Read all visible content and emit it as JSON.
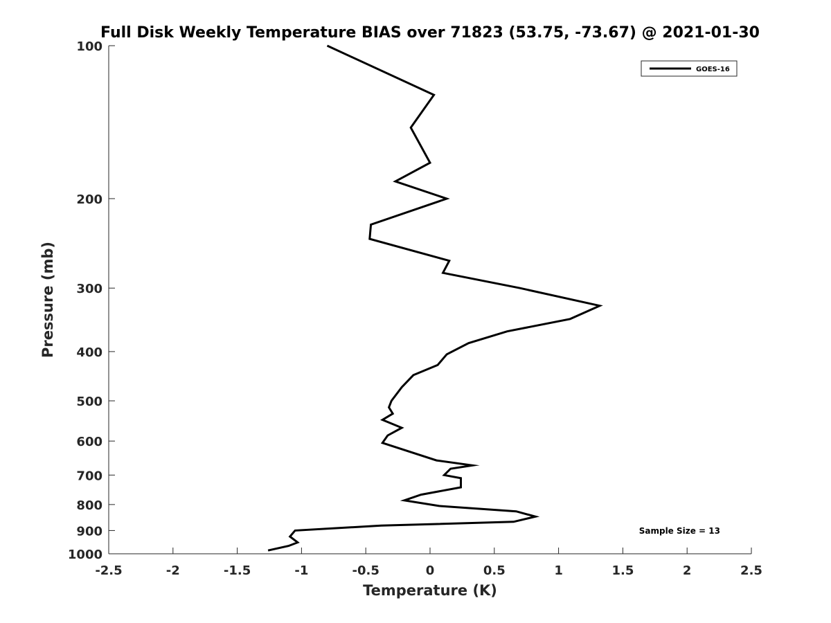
{
  "chart_data": {
    "type": "line",
    "title": "Full Disk Weekly Temperature BIAS over 71823 (53.75, -73.67) @ 2021-01-30",
    "xlabel": "Temperature (K)",
    "ylabel": "Pressure (mb)",
    "xlim": [
      -2.5,
      2.5
    ],
    "ylim": [
      100,
      1000
    ],
    "yscale": "log",
    "y_reversed": true,
    "grid": false,
    "legend_position": "top-right",
    "x_ticks": [
      -2.5,
      -2,
      -1.5,
      -1,
      -0.5,
      0,
      0.5,
      1,
      1.5,
      2,
      2.5
    ],
    "x_tick_labels": [
      "-2.5",
      "-2",
      "-1.5",
      "-1",
      "-0.5",
      "0",
      "0.5",
      "1",
      "1.5",
      "2",
      "2.5"
    ],
    "y_ticks": [
      100,
      200,
      300,
      400,
      500,
      600,
      700,
      800,
      900,
      1000
    ],
    "y_tick_labels": [
      "100",
      "200",
      "300",
      "400",
      "500",
      "600",
      "700",
      "800",
      "900",
      "1000"
    ],
    "series": [
      {
        "name": "GOES-16",
        "color": "#000000",
        "points": [
          [
            -0.8,
            100
          ],
          [
            0.03,
            125
          ],
          [
            -0.15,
            145
          ],
          [
            0.0,
            170
          ],
          [
            -0.27,
            185
          ],
          [
            0.13,
            200
          ],
          [
            -0.46,
            225
          ],
          [
            -0.47,
            240
          ],
          [
            0.15,
            265
          ],
          [
            0.1,
            280
          ],
          [
            0.7,
            300
          ],
          [
            1.32,
            325
          ],
          [
            1.09,
            345
          ],
          [
            0.6,
            365
          ],
          [
            0.3,
            385
          ],
          [
            0.13,
            405
          ],
          [
            0.06,
            425
          ],
          [
            -0.13,
            445
          ],
          [
            -0.22,
            470
          ],
          [
            -0.3,
            500
          ],
          [
            -0.32,
            515
          ],
          [
            -0.29,
            530
          ],
          [
            -0.37,
            545
          ],
          [
            -0.22,
            565
          ],
          [
            -0.33,
            585
          ],
          [
            -0.37,
            605
          ],
          [
            0.05,
            655
          ],
          [
            0.33,
            670
          ],
          [
            0.16,
            680
          ],
          [
            0.11,
            700
          ],
          [
            0.24,
            710
          ],
          [
            0.24,
            740
          ],
          [
            -0.07,
            765
          ],
          [
            -0.2,
            785
          ],
          [
            0.07,
            805
          ],
          [
            0.67,
            825
          ],
          [
            0.82,
            845
          ],
          [
            0.65,
            865
          ],
          [
            -0.38,
            880
          ],
          [
            -1.05,
            900
          ],
          [
            -1.09,
            925
          ],
          [
            -1.03,
            950
          ],
          [
            -1.1,
            965
          ],
          [
            -1.26,
            985
          ]
        ]
      }
    ],
    "annotations": [
      "Sample Size = 13"
    ]
  }
}
